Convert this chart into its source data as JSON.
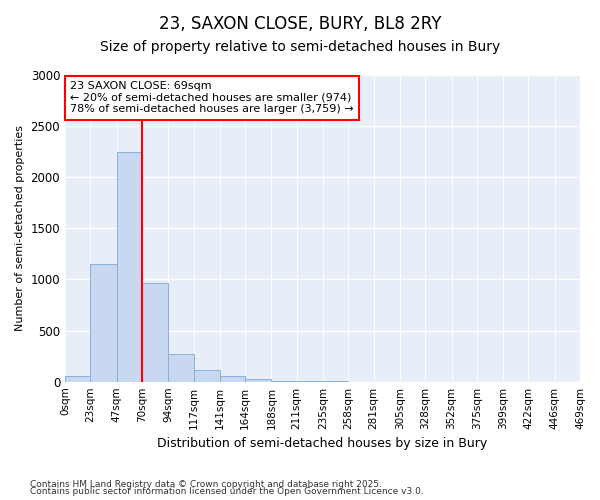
{
  "title1": "23, SAXON CLOSE, BURY, BL8 2RY",
  "title2": "Size of property relative to semi-detached houses in Bury",
  "xlabel": "Distribution of semi-detached houses by size in Bury",
  "ylabel": "Number of semi-detached properties",
  "bin_edges": [
    0,
    23,
    47,
    70,
    94,
    117,
    141,
    164,
    188,
    211,
    235,
    258,
    281,
    305,
    328,
    352,
    375,
    399,
    422,
    446,
    469
  ],
  "bin_labels": [
    "0sqm",
    "23sqm",
    "47sqm",
    "70sqm",
    "94sqm",
    "117sqm",
    "141sqm",
    "164sqm",
    "188sqm",
    "211sqm",
    "235sqm",
    "258sqm",
    "281sqm",
    "305sqm",
    "328sqm",
    "352sqm",
    "375sqm",
    "399sqm",
    "422sqm",
    "446sqm",
    "469sqm"
  ],
  "bar_heights": [
    60,
    1150,
    2250,
    970,
    270,
    110,
    55,
    30,
    8,
    4,
    2,
    1,
    0,
    0,
    0,
    0,
    0,
    0,
    0,
    0
  ],
  "bar_color": "#c8d8f0",
  "bar_edge_color": "#8ab0d8",
  "property_line_x": 70,
  "property_line_color": "red",
  "annotation_title": "23 SAXON CLOSE: 69sqm",
  "annotation_line1": "← 20% of semi-detached houses are smaller (974)",
  "annotation_line2": "78% of semi-detached houses are larger (3,759) →",
  "annotation_box_edgecolor": "red",
  "annotation_bg_color": "white",
  "ylim": [
    0,
    3000
  ],
  "yticks": [
    0,
    500,
    1000,
    1500,
    2000,
    2500,
    3000
  ],
  "footnote1": "Contains HM Land Registry data © Crown copyright and database right 2025.",
  "footnote2": "Contains public sector information licensed under the Open Government Licence v3.0.",
  "background_color": "#ffffff",
  "plot_bg_color": "#e8eef8",
  "grid_color": "#ffffff",
  "title1_fontsize": 12,
  "title2_fontsize": 10
}
